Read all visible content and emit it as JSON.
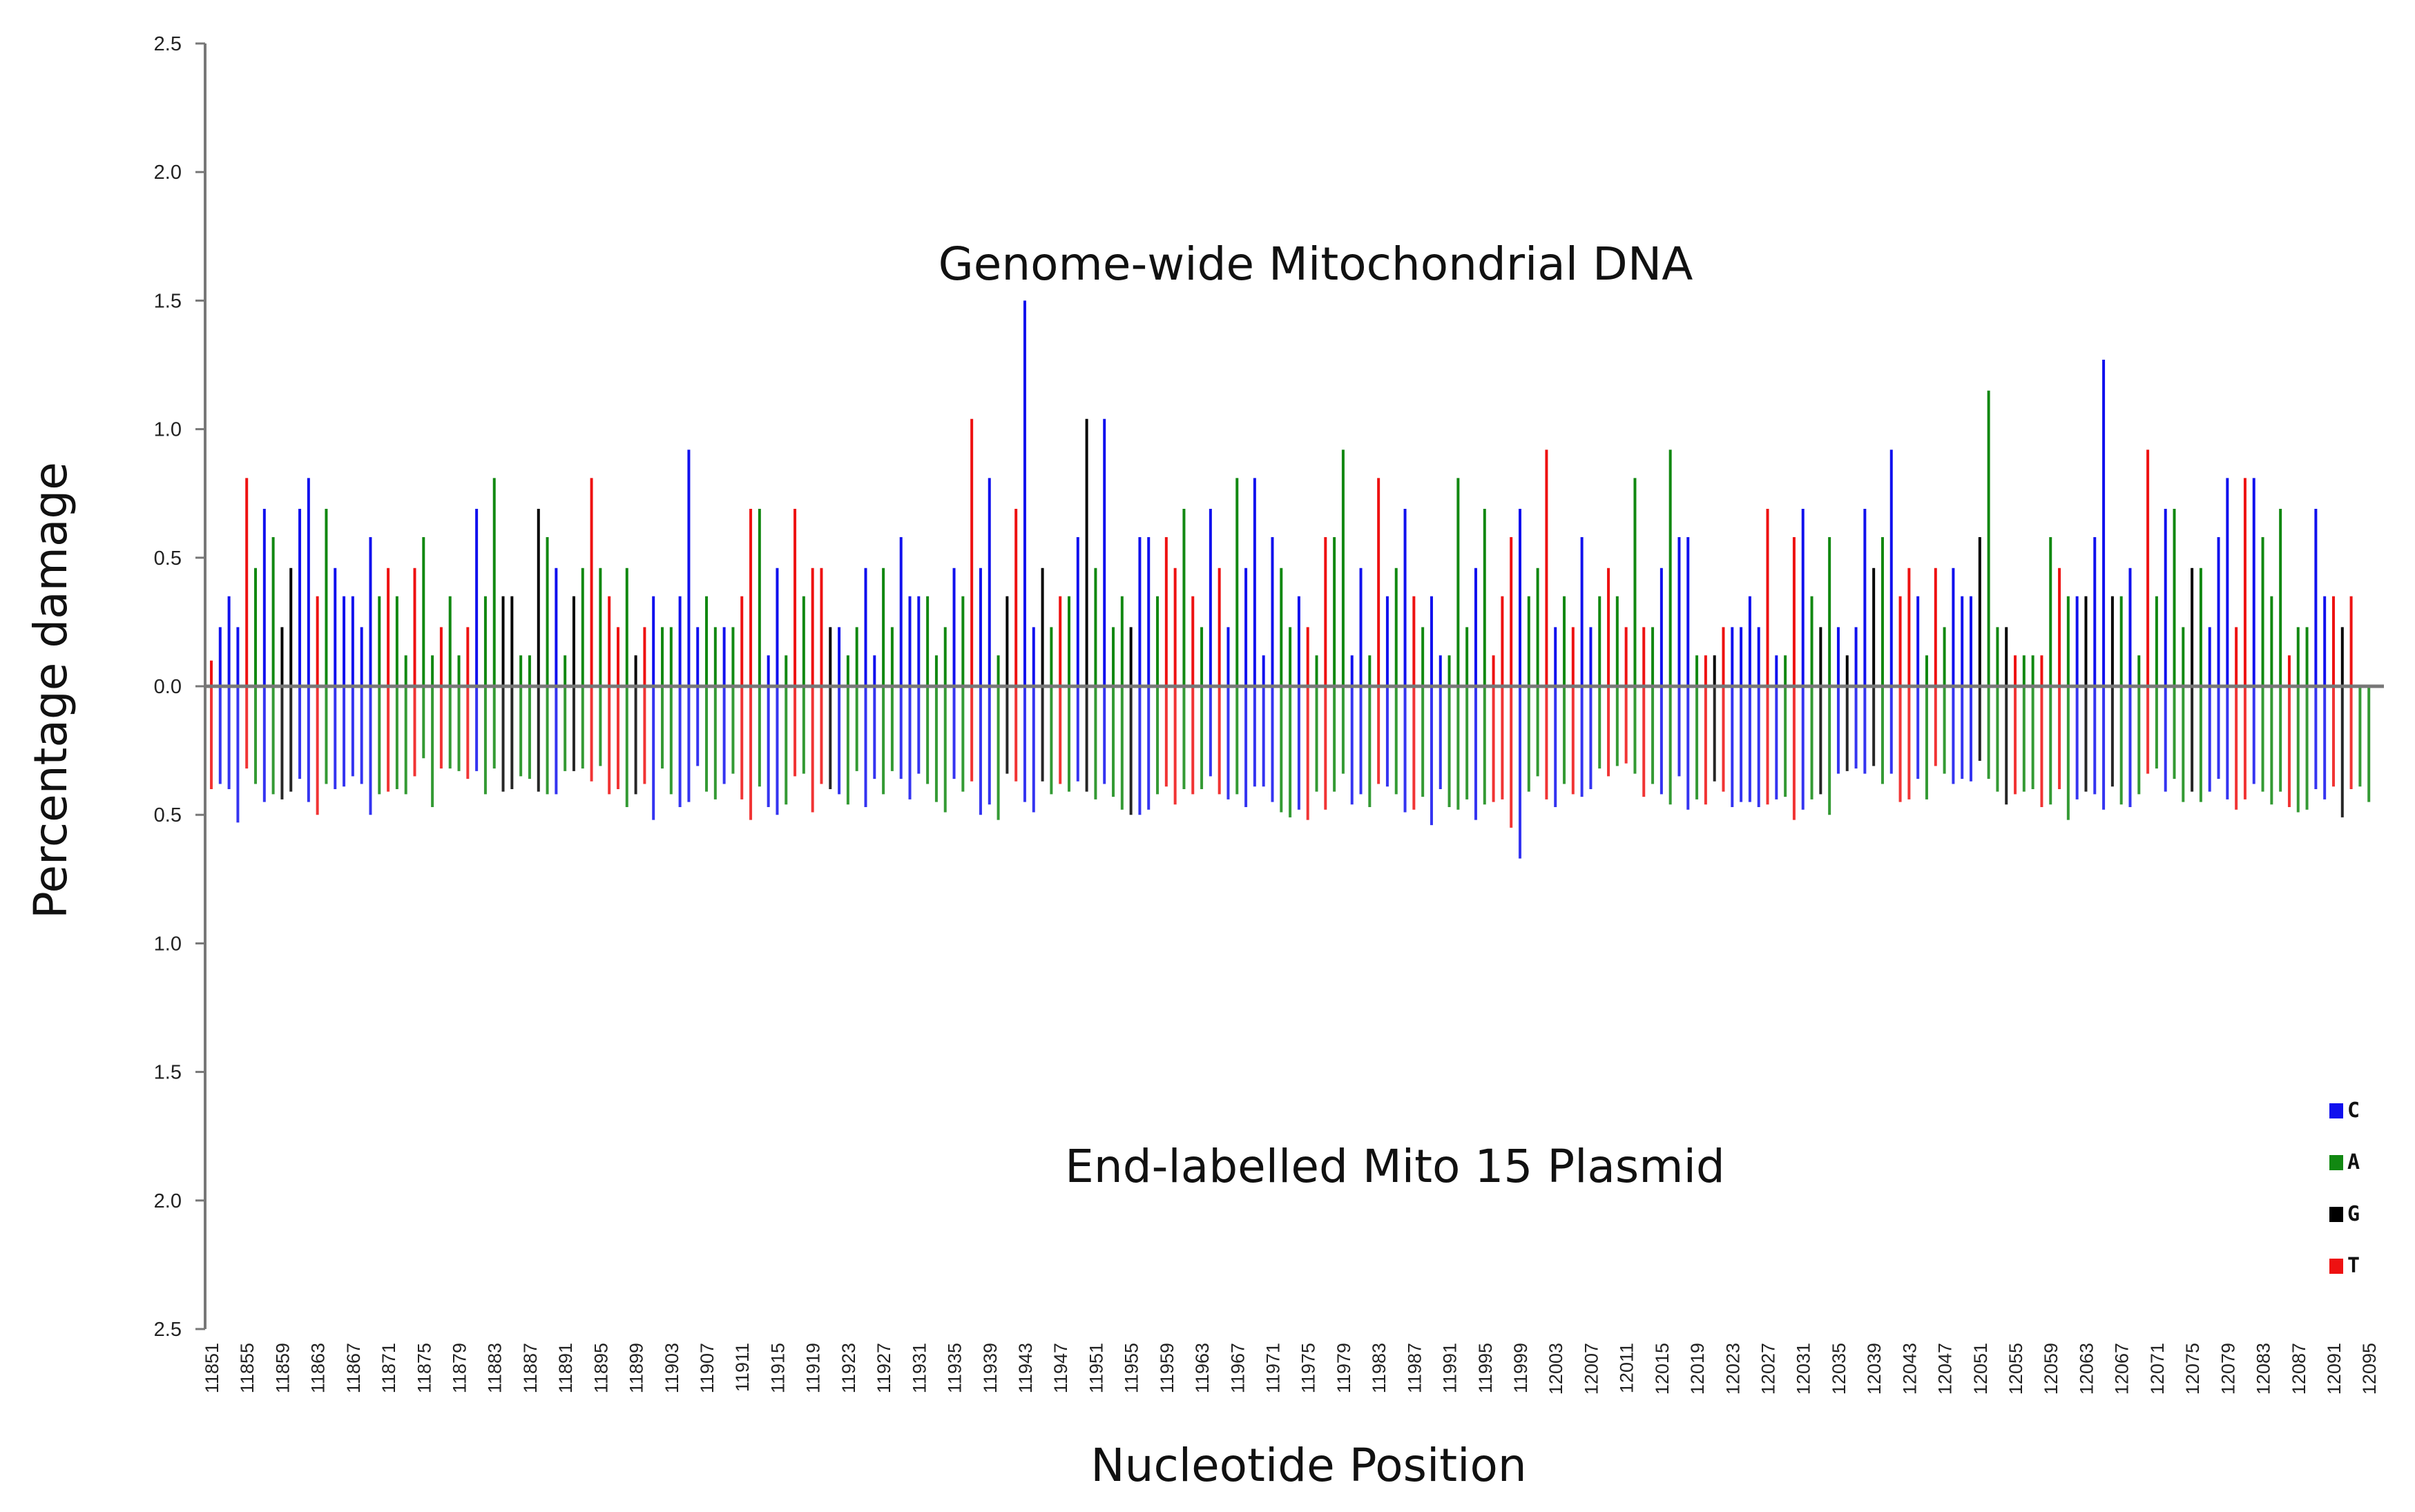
{
  "chart_data": {
    "type": "bar",
    "title": "",
    "xlabel": "Nucleotide Position",
    "ylabel": "Percentage damage",
    "annotations": {
      "top": "Genome-wide Mitochondrial DNA",
      "bottom": "End-labelled Mito 15 Plasmid"
    },
    "yticks": [
      "2.5",
      "2.0",
      "1.5",
      "1.0",
      "0.5",
      "0.0",
      "0.5",
      "1.0",
      "1.5",
      "2.0",
      "2.5"
    ],
    "ylim": [
      -2.5,
      2.5
    ],
    "x_start": 11851,
    "x_end": 12096,
    "x_tick_step": 4,
    "x_tick_labels": [
      "11851",
      "11855",
      "11859",
      "11863",
      "11867",
      "11871",
      "11875",
      "11879",
      "11883",
      "11887",
      "11891",
      "11895",
      "11899",
      "11903",
      "11907",
      "11911",
      "11915",
      "11919",
      "11923",
      "11927",
      "11931",
      "11935",
      "11939",
      "11943",
      "11947",
      "11951",
      "11955",
      "11959",
      "11963",
      "11967",
      "11971",
      "11975",
      "11979",
      "11983",
      "11987",
      "11991",
      "11995",
      "11999",
      "12003",
      "12007",
      "12011",
      "12015",
      "12019",
      "12023",
      "12027",
      "12031",
      "12035",
      "12039",
      "12043",
      "12047",
      "12051",
      "12055",
      "12059",
      "12063",
      "12067",
      "12071",
      "12075",
      "12079",
      "12083",
      "12087",
      "12091",
      "12095"
    ],
    "colors": {
      "C": "#1010ee",
      "A": "#118811",
      "G": "#000000",
      "T": "#ee1111"
    },
    "legend": [
      {
        "label": "C",
        "color": "#1010ee"
      },
      {
        "label": "A",
        "color": "#118811"
      },
      {
        "label": "G",
        "color": "#000000"
      },
      {
        "label": "T",
        "color": "#ee1111"
      }
    ],
    "legend_position": "bottom-right",
    "sequence": "TCCCTACAGGCCTACCCCCATAATAATAATCAAGGAAGACAGATATTAGTCAACCCAACATTACCATATTGCAACCAACCCAAACATCCAGTCCGATACGACAAGCCATTATACTCACCCCAACTATAACCATCACTACCAAACATTTCAATCATCCATATATACACCATGTCCCCTCATCAGACGCCGACTTCATACCCGAAGTAATATACGCCGACATACAAGACCCTTCAAATAACCTGTAACCGTCCCA",
    "series": [
      {
        "name": "Genome-wide Mitochondrial DNA",
        "values": [
          0.1,
          0.23,
          0.35,
          0.23,
          0.81,
          0.46,
          0.69,
          0.58,
          0.23,
          0.46,
          0.69,
          0.81,
          0.35,
          0.69,
          0.46,
          0.35,
          0.35,
          0.23,
          0.58,
          0.35,
          0.46,
          0.35,
          0.12,
          0.46,
          0.58,
          0.12,
          0.23,
          0.35,
          0.12,
          0.23,
          0.69,
          0.35,
          0.81,
          0.35,
          0.35,
          0.12,
          0.12,
          0.69,
          0.58,
          0.46,
          0.12,
          0.35,
          0.46,
          0.81,
          0.46,
          0.35,
          0.23,
          0.46,
          0.12,
          0.23,
          0.35,
          0.23,
          0.23,
          0.35,
          0.92,
          0.23,
          0.35,
          0.23,
          0.23,
          0.23,
          0.35,
          0.69,
          0.69,
          0.12,
          0.46,
          0.12,
          0.69,
          0.35,
          0.46,
          0.46,
          0.23,
          0.23,
          0.12,
          0.23,
          0.46,
          0.12,
          0.46,
          0.23,
          0.58,
          0.35,
          0.35,
          0.35,
          0.12,
          0.23,
          0.46,
          0.35,
          1.04,
          0.46,
          0.81,
          0.12,
          0.35,
          0.69,
          1.5,
          0.23,
          0.46,
          0.23,
          0.35,
          0.35,
          0.58,
          1.04,
          0.46,
          1.04,
          0.23,
          0.35,
          0.23,
          0.58,
          0.58,
          0.35,
          0.58,
          0.46,
          0.69,
          0.35,
          0.23,
          0.69,
          0.46,
          0.23,
          0.81,
          0.46,
          0.81,
          0.12,
          0.58,
          0.46,
          0.23,
          0.35,
          0.23,
          0.12,
          0.58,
          0.58,
          0.92,
          0.12,
          0.46,
          0.12,
          0.81,
          0.35,
          0.46,
          0.69,
          0.35,
          0.23,
          0.35,
          0.12,
          0.12,
          0.81,
          0.23,
          0.46,
          0.69,
          0.12,
          0.35,
          0.58,
          0.69,
          0.35,
          0.46,
          0.92,
          0.23,
          0.35,
          0.23,
          0.58,
          0.23,
          0.35,
          0.46,
          0.35,
          0.23,
          0.81,
          0.23,
          0.23,
          0.46,
          0.92,
          0.58,
          0.58,
          0.12,
          0.12,
          0.12,
          0.23,
          0.23,
          0.23,
          0.35,
          0.23,
          0.69,
          0.12,
          0.12,
          0.58,
          0.69,
          0.35,
          0.23,
          0.58,
          0.23,
          0.12,
          0.23,
          0.69,
          0.46,
          0.58,
          0.92,
          0.35,
          0.46,
          0.35,
          0.12,
          0.46,
          0.23,
          0.46,
          0.35,
          0.35,
          0.58,
          1.15,
          0.23,
          0.23,
          0.12,
          0.12,
          0.12,
          0.12,
          0.58,
          0.46,
          0.35,
          0.35,
          0.35,
          0.58,
          1.27,
          0.35,
          0.35,
          0.46,
          0.12,
          0.92,
          0.35,
          0.69,
          0.69,
          0.23,
          0.46,
          0.46,
          0.23,
          0.58,
          0.81,
          0.23,
          0.81,
          0.81,
          0.58,
          0.35,
          0.69,
          0.12,
          0.23,
          0.23,
          0.69,
          0.35,
          0.35,
          0.23,
          0.35
        ]
      },
      {
        "name": "End-labelled Mito 15 Plasmid",
        "values": [
          -0.4,
          -0.38,
          -0.4,
          -0.53,
          -0.32,
          -0.38,
          -0.45,
          -0.42,
          -0.44,
          -0.41,
          -0.36,
          -0.45,
          -0.5,
          -0.38,
          -0.4,
          -0.39,
          -0.35,
          -0.38,
          -0.5,
          -0.42,
          -0.41,
          -0.4,
          -0.42,
          -0.35,
          -0.28,
          -0.47,
          -0.32,
          -0.32,
          -0.33,
          -0.36,
          -0.33,
          -0.42,
          -0.32,
          -0.41,
          -0.4,
          -0.35,
          -0.36,
          -0.41,
          -0.42,
          -0.42,
          -0.33,
          -0.33,
          -0.32,
          -0.37,
          -0.31,
          -0.42,
          -0.4,
          -0.47,
          -0.42,
          -0.38,
          -0.52,
          -0.32,
          -0.42,
          -0.47,
          -0.45,
          -0.31,
          -0.41,
          -0.44,
          -0.38,
          -0.34,
          -0.44,
          -0.52,
          -0.39,
          -0.47,
          -0.5,
          -0.46,
          -0.35,
          -0.34,
          -0.49,
          -0.38,
          -0.4,
          -0.42,
          -0.46,
          -0.33,
          -0.47,
          -0.36,
          -0.42,
          -0.33,
          -0.36,
          -0.44,
          -0.34,
          -0.38,
          -0.45,
          -0.49,
          -0.36,
          -0.41,
          -0.37,
          -0.5,
          -0.46,
          -0.52,
          -0.34,
          -0.37,
          -0.45,
          -0.49,
          -0.37,
          -0.42,
          -0.38,
          -0.41,
          -0.37,
          -0.41,
          -0.44,
          -0.38,
          -0.43,
          -0.48,
          -0.5,
          -0.5,
          -0.48,
          -0.42,
          -0.39,
          -0.46,
          -0.4,
          -0.42,
          -0.4,
          -0.35,
          -0.42,
          -0.44,
          -0.42,
          -0.47,
          -0.39,
          -0.39,
          -0.45,
          -0.49,
          -0.51,
          -0.48,
          -0.52,
          -0.41,
          -0.48,
          -0.41,
          -0.34,
          -0.46,
          -0.42,
          -0.47,
          -0.38,
          -0.39,
          -0.42,
          -0.49,
          -0.48,
          -0.43,
          -0.54,
          -0.4,
          -0.47,
          -0.48,
          -0.44,
          -0.52,
          -0.46,
          -0.45,
          -0.44,
          -0.55,
          -0.67,
          -0.41,
          -0.35,
          -0.44,
          -0.47,
          -0.38,
          -0.42,
          -0.43,
          -0.4,
          -0.32,
          -0.35,
          -0.31,
          -0.3,
          -0.34,
          -0.43,
          -0.38,
          -0.42,
          -0.46,
          -0.35,
          -0.48,
          -0.44,
          -0.46,
          -0.37,
          -0.41,
          -0.47,
          -0.45,
          -0.45,
          -0.47,
          -0.46,
          -0.44,
          -0.43,
          -0.52,
          -0.48,
          -0.44,
          -0.42,
          -0.5,
          -0.34,
          -0.33,
          -0.32,
          -0.34,
          -0.31,
          -0.38,
          -0.34,
          -0.45,
          -0.44,
          -0.36,
          -0.44,
          -0.31,
          -0.34,
          -0.38,
          -0.36,
          -0.37,
          -0.29,
          -0.36,
          -0.41,
          -0.46,
          -0.42,
          -0.41,
          -0.4,
          -0.47,
          -0.46,
          -0.4,
          -0.52,
          -0.44,
          -0.41,
          -0.42,
          -0.48,
          -0.39,
          -0.46,
          -0.47,
          -0.42,
          -0.34,
          -0.32,
          -0.41,
          -0.36,
          -0.45,
          -0.41,
          -0.45,
          -0.41,
          -0.36,
          -0.44,
          -0.48,
          -0.44,
          -0.38,
          -0.41,
          -0.46,
          -0.41,
          -0.47,
          -0.49,
          -0.48,
          -0.4,
          -0.44,
          -0.39,
          -0.51,
          -0.4,
          -0.39,
          -0.45
        ]
      }
    ]
  }
}
